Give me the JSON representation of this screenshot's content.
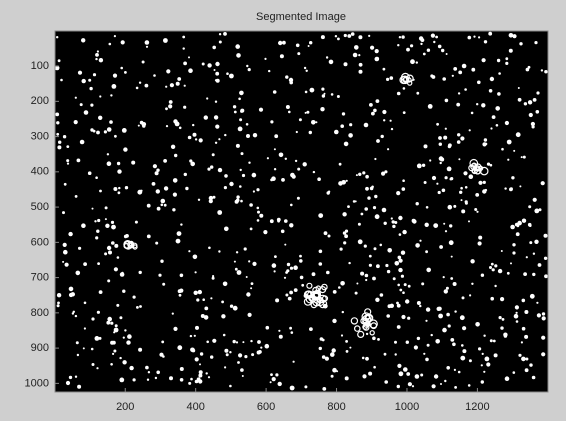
{
  "chart_data": {
    "type": "image",
    "title": "Segmented Image",
    "xlim": [
      0.5,
      1400.5
    ],
    "ylim": [
      0.5,
      1024.5
    ],
    "y_direction": "reverse",
    "xticks": [
      200,
      400,
      600,
      800,
      1000,
      1200
    ],
    "yticks": [
      100,
      200,
      300,
      400,
      500,
      600,
      700,
      800,
      900,
      1000
    ],
    "background": "#000000",
    "foreground": "#ffffff"
  }
}
